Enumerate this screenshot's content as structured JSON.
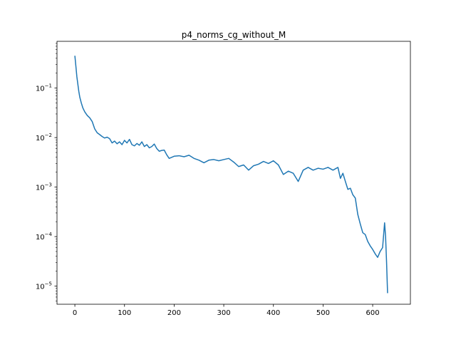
{
  "chart_data": {
    "type": "line",
    "title": "p4_norms_cg_without_M",
    "xlabel": "",
    "ylabel": "",
    "xlim": [
      -36,
      676
    ],
    "ylim": [
      4.3e-06,
      0.88
    ],
    "yscale": "log",
    "grid": false,
    "legend": "none",
    "xticks": [
      0,
      100,
      200,
      300,
      400,
      500,
      600
    ],
    "xtick_labels": [
      "0",
      "100",
      "200",
      "300",
      "400",
      "500",
      "600"
    ],
    "yticks": [
      1e-05,
      0.0001,
      0.001,
      0.01,
      0.1
    ],
    "ytick_labels": [
      {
        "base": "10",
        "exp": "−5"
      },
      {
        "base": "10",
        "exp": "−4"
      },
      {
        "base": "10",
        "exp": "−3"
      },
      {
        "base": "10",
        "exp": "−2"
      },
      {
        "base": "10",
        "exp": "−1"
      }
    ],
    "series": [
      {
        "color": "#1f77b4",
        "x": [
          0,
          2,
          4,
          6,
          8,
          10,
          13,
          16,
          20,
          25,
          30,
          35,
          40,
          45,
          50,
          55,
          60,
          65,
          70,
          75,
          80,
          85,
          90,
          95,
          100,
          105,
          110,
          115,
          120,
          125,
          130,
          135,
          140,
          145,
          150,
          155,
          160,
          165,
          170,
          175,
          180,
          185,
          190,
          200,
          210,
          220,
          230,
          240,
          250,
          260,
          270,
          280,
          290,
          300,
          310,
          320,
          330,
          340,
          350,
          360,
          370,
          380,
          390,
          400,
          410,
          420,
          430,
          440,
          450,
          460,
          470,
          480,
          490,
          500,
          510,
          520,
          530,
          535,
          540,
          545,
          550,
          555,
          560,
          565,
          570,
          575,
          580,
          585,
          590,
          595,
          600,
          605,
          610,
          615,
          620,
          624,
          626,
          628,
          630
        ],
        "y": [
          0.45,
          0.28,
          0.17,
          0.12,
          0.085,
          0.065,
          0.05,
          0.04,
          0.033,
          0.028,
          0.025,
          0.021,
          0.015,
          0.0125,
          0.0115,
          0.0105,
          0.0098,
          0.0102,
          0.0095,
          0.0078,
          0.0085,
          0.0075,
          0.0082,
          0.0072,
          0.0088,
          0.0078,
          0.0092,
          0.0072,
          0.0068,
          0.0076,
          0.007,
          0.0082,
          0.0066,
          0.0072,
          0.0062,
          0.0066,
          0.0074,
          0.006,
          0.0053,
          0.0055,
          0.0056,
          0.0045,
          0.0038,
          0.0042,
          0.0043,
          0.0041,
          0.0044,
          0.0038,
          0.0035,
          0.0031,
          0.0035,
          0.0036,
          0.0034,
          0.0036,
          0.0038,
          0.0032,
          0.0026,
          0.0028,
          0.0022,
          0.0027,
          0.0029,
          0.0033,
          0.003,
          0.0034,
          0.0028,
          0.0018,
          0.0021,
          0.0019,
          0.0013,
          0.0022,
          0.0025,
          0.0022,
          0.0024,
          0.0023,
          0.0025,
          0.0022,
          0.0025,
          0.0015,
          0.0019,
          0.0013,
          0.0009,
          0.00095,
          0.0007,
          0.0006,
          0.00028,
          0.00018,
          0.00012,
          0.00011,
          8e-05,
          6.5e-05,
          5.5e-05,
          4.5e-05,
          3.8e-05,
          5e-05,
          6e-05,
          0.00019,
          0.0001,
          3e-05,
          7.2e-06
        ]
      }
    ]
  }
}
